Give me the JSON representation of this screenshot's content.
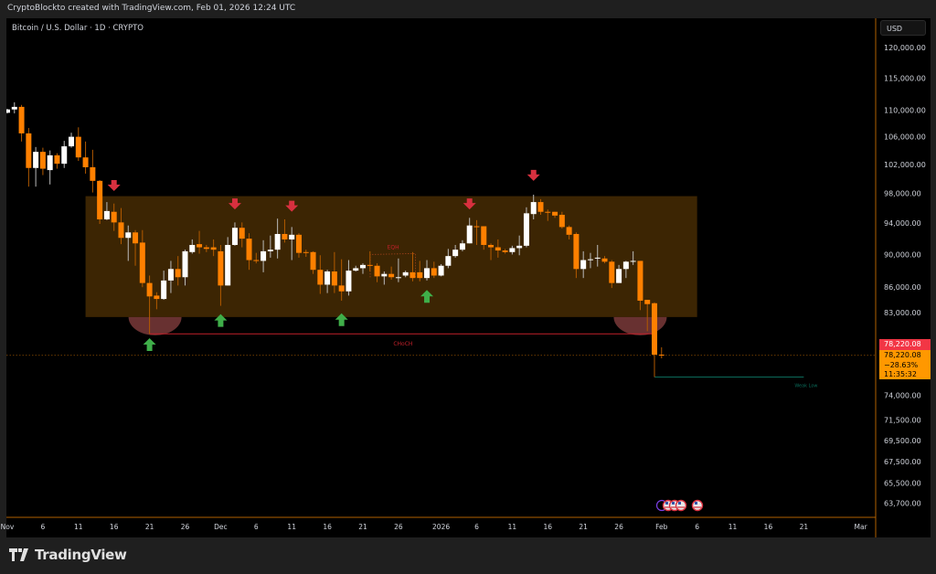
{
  "header": {
    "attribution": "CryptoBlockto created with TradingView.com, Feb 01, 2026 12:24 UTC"
  },
  "symbol": {
    "title": "Bitcoin / U.S. Dollar · 1D · CRYPTO"
  },
  "price_axis": {
    "currency": "USD"
  },
  "last_price": {
    "price_label": "78,220.08",
    "box_price": "78,220.08",
    "change": "−28.63%",
    "countdown": "11:35:32",
    "price_color": "#f23645",
    "box_color": "#ff9800"
  },
  "footer": {
    "brand": "TradingView"
  },
  "colors": {
    "up": "#ffffff",
    "down": "#ff8000",
    "zone": "#3c2503",
    "axis_line": "#b06000",
    "choch": "#c2202a",
    "eqh": "#a0401a",
    "weak_low": "#0b6b5a",
    "bull_arrow": "#3fae49",
    "bear_arrow": "#d8303f",
    "sweep": "#7a3a3a"
  },
  "chart_data": {
    "type": "candlestick",
    "title": "Bitcoin / U.S. Dollar · 1D · CRYPTO",
    "y_scale": "log",
    "ylim": [
      63000,
      123000
    ],
    "xlim": [
      "2025-11-01",
      "2026-03-03"
    ],
    "grid": false,
    "y_ticks": [
      120000,
      115000,
      110000,
      106000,
      102000,
      98000,
      94000,
      90000,
      86000,
      83000,
      74000,
      71500,
      69500,
      67500,
      65500,
      63700
    ],
    "y_tick_labels": [
      "120,000.00",
      "115,000.00",
      "110,000.00",
      "106,000.00",
      "102,000.00",
      "98,000.00",
      "94,000.00",
      "90,000.00",
      "86,000.00",
      "83,000.00",
      "74,000.00",
      "71,500.00",
      "69,500.00",
      "67,500.00",
      "65,500.00",
      "63,700.00"
    ],
    "x_ticks": [
      {
        "label": "Nov",
        "date": "2025-11-01"
      },
      {
        "label": "6",
        "date": "2025-11-06"
      },
      {
        "label": "11",
        "date": "2025-11-11"
      },
      {
        "label": "16",
        "date": "2025-11-16"
      },
      {
        "label": "21",
        "date": "2025-11-21"
      },
      {
        "label": "26",
        "date": "2025-11-26"
      },
      {
        "label": "Dec",
        "date": "2025-12-01"
      },
      {
        "label": "6",
        "date": "2025-12-06"
      },
      {
        "label": "11",
        "date": "2025-12-11"
      },
      {
        "label": "16",
        "date": "2025-12-16"
      },
      {
        "label": "21",
        "date": "2025-12-21"
      },
      {
        "label": "26",
        "date": "2025-12-26"
      },
      {
        "label": "2026",
        "date": "2026-01-01"
      },
      {
        "label": "6",
        "date": "2026-01-06"
      },
      {
        "label": "11",
        "date": "2026-01-11"
      },
      {
        "label": "16",
        "date": "2026-01-16"
      },
      {
        "label": "21",
        "date": "2026-01-21"
      },
      {
        "label": "26",
        "date": "2026-01-26"
      },
      {
        "label": "Feb",
        "date": "2026-02-01"
      },
      {
        "label": "6",
        "date": "2026-02-06"
      },
      {
        "label": "11",
        "date": "2026-02-11"
      },
      {
        "label": "16",
        "date": "2026-02-16"
      },
      {
        "label": "21",
        "date": "2026-02-21"
      },
      {
        "label": "Mar",
        "date": "2026-03-01"
      }
    ],
    "candle_fields": [
      "date",
      "open",
      "high",
      "low",
      "close"
    ],
    "candles": [
      [
        "2025-11-01",
        109600,
        110200,
        109500,
        110100
      ],
      [
        "2025-11-02",
        110100,
        111200,
        109500,
        110500
      ],
      [
        "2025-11-03",
        110500,
        110800,
        105300,
        106500
      ],
      [
        "2025-11-04",
        106500,
        107300,
        98900,
        101500
      ],
      [
        "2025-11-05",
        101500,
        104500,
        98900,
        103800
      ],
      [
        "2025-11-06",
        103800,
        104400,
        100500,
        101400
      ],
      [
        "2025-11-07",
        101200,
        104000,
        99200,
        103300
      ],
      [
        "2025-11-08",
        103300,
        103600,
        101400,
        102100
      ],
      [
        "2025-11-09",
        102100,
        105400,
        101500,
        104600
      ],
      [
        "2025-11-10",
        104600,
        106600,
        104400,
        106000
      ],
      [
        "2025-11-11",
        106000,
        107400,
        102500,
        103000
      ],
      [
        "2025-11-12",
        103000,
        105300,
        100700,
        101600
      ],
      [
        "2025-11-13",
        101600,
        104100,
        98100,
        99700
      ],
      [
        "2025-11-14",
        99700,
        99800,
        93900,
        94500
      ],
      [
        "2025-11-15",
        94500,
        96800,
        94400,
        95600
      ],
      [
        "2025-11-16",
        95500,
        96600,
        93000,
        94100
      ],
      [
        "2025-11-17",
        94100,
        96000,
        91300,
        92100
      ],
      [
        "2025-11-18",
        92100,
        93700,
        89200,
        92800
      ],
      [
        "2025-11-19",
        92800,
        93100,
        88600,
        91400
      ],
      [
        "2025-11-20",
        91500,
        93100,
        86000,
        86500
      ],
      [
        "2025-11-21",
        86500,
        87400,
        80600,
        84900
      ],
      [
        "2025-11-22",
        85000,
        85400,
        83400,
        84600
      ],
      [
        "2025-11-23",
        84600,
        88000,
        84500,
        86800
      ],
      [
        "2025-11-24",
        86800,
        89200,
        85300,
        88200
      ],
      [
        "2025-11-25",
        88200,
        89800,
        86200,
        87200
      ],
      [
        "2025-11-26",
        87200,
        90600,
        86200,
        90400
      ],
      [
        "2025-11-27",
        90300,
        91900,
        90100,
        91200
      ],
      [
        "2025-11-28",
        91300,
        93000,
        90100,
        90900
      ],
      [
        "2025-11-29",
        90900,
        91200,
        90300,
        90700
      ],
      [
        "2025-11-30",
        90900,
        91900,
        89800,
        90600
      ],
      [
        "2025-12-01",
        90400,
        91200,
        83800,
        86200
      ],
      [
        "2025-12-02",
        86200,
        92200,
        86200,
        91200
      ],
      [
        "2025-12-03",
        91200,
        94100,
        91100,
        93400
      ],
      [
        "2025-12-04",
        93400,
        94100,
        90900,
        92000
      ],
      [
        "2025-12-05",
        92000,
        92700,
        88100,
        89300
      ],
      [
        "2025-12-06",
        89300,
        90200,
        88900,
        89200
      ],
      [
        "2025-12-07",
        89200,
        91800,
        87800,
        90400
      ],
      [
        "2025-12-08",
        90400,
        92400,
        89600,
        90600
      ],
      [
        "2025-12-09",
        90600,
        94600,
        89500,
        92600
      ],
      [
        "2025-12-10",
        92600,
        94500,
        91500,
        91900
      ],
      [
        "2025-12-11",
        91900,
        93500,
        89300,
        92500
      ],
      [
        "2025-12-12",
        92500,
        92700,
        89600,
        90200
      ],
      [
        "2025-12-13",
        90300,
        90600,
        89700,
        90200
      ],
      [
        "2025-12-14",
        90300,
        90400,
        87600,
        88100
      ],
      [
        "2025-12-15",
        88100,
        89900,
        85200,
        86300
      ],
      [
        "2025-12-16",
        86300,
        88100,
        85300,
        87900
      ],
      [
        "2025-12-17",
        87900,
        90300,
        85300,
        86200
      ],
      [
        "2025-12-18",
        86200,
        89400,
        84400,
        85500
      ],
      [
        "2025-12-19",
        85500,
        89300,
        85000,
        88000
      ],
      [
        "2025-12-20",
        88000,
        88600,
        87900,
        88300
      ],
      [
        "2025-12-21",
        88300,
        88900,
        87600,
        88700
      ],
      [
        "2025-12-22",
        88700,
        90400,
        87900,
        88600
      ],
      [
        "2025-12-23",
        88600,
        88900,
        86600,
        87300
      ],
      [
        "2025-12-24",
        87300,
        87900,
        86300,
        87600
      ],
      [
        "2025-12-25",
        87600,
        88500,
        86900,
        87200
      ],
      [
        "2025-12-26",
        87100,
        89500,
        86600,
        87200
      ],
      [
        "2025-12-27",
        87400,
        88000,
        87200,
        87800
      ],
      [
        "2025-12-28",
        87800,
        90300,
        86700,
        87100
      ],
      [
        "2025-12-29",
        87800,
        89200,
        86700,
        87100
      ],
      [
        "2025-12-30",
        87100,
        89300,
        86800,
        88300
      ],
      [
        "2025-12-31",
        88300,
        89100,
        87100,
        87400
      ],
      [
        "2026-01-01",
        87400,
        88800,
        87300,
        88600
      ],
      [
        "2026-01-02",
        88600,
        90700,
        88300,
        89800
      ],
      [
        "2026-01-03",
        89800,
        91200,
        89600,
        90600
      ],
      [
        "2026-01-04",
        90600,
        91800,
        90400,
        91400
      ],
      [
        "2026-01-05",
        91400,
        94700,
        91400,
        93700
      ],
      [
        "2026-01-06",
        93600,
        94400,
        91200,
        93500
      ],
      [
        "2026-01-07",
        93600,
        93600,
        90600,
        91200
      ],
      [
        "2026-01-08",
        91200,
        91400,
        89300,
        90900
      ],
      [
        "2026-01-09",
        90900,
        91900,
        89600,
        90500
      ],
      [
        "2026-01-10",
        90500,
        90700,
        90100,
        90300
      ],
      [
        "2026-01-11",
        90300,
        91100,
        90000,
        90800
      ],
      [
        "2026-01-12",
        90800,
        92400,
        89900,
        91100
      ],
      [
        "2026-01-13",
        91100,
        96100,
        90900,
        95300
      ],
      [
        "2026-01-14",
        95200,
        97800,
        94500,
        96800
      ],
      [
        "2026-01-15",
        96800,
        97200,
        95100,
        95500
      ],
      [
        "2026-01-16",
        95500,
        95800,
        94300,
        95400
      ],
      [
        "2026-01-17",
        95500,
        95500,
        94700,
        95000
      ],
      [
        "2026-01-18",
        95100,
        95500,
        93300,
        93500
      ],
      [
        "2026-01-19",
        93500,
        93700,
        91900,
        92500
      ],
      [
        "2026-01-20",
        92600,
        92800,
        87100,
        88200
      ],
      [
        "2026-01-21",
        88200,
        90400,
        87100,
        89300
      ],
      [
        "2026-01-22",
        89300,
        90200,
        88300,
        89400
      ],
      [
        "2026-01-23",
        89500,
        91200,
        88500,
        89600
      ],
      [
        "2026-01-24",
        89500,
        89800,
        88900,
        89100
      ],
      [
        "2026-01-25",
        89100,
        89300,
        85900,
        86500
      ],
      [
        "2026-01-26",
        86500,
        88700,
        86500,
        88200
      ],
      [
        "2026-01-27",
        88200,
        89200,
        87100,
        89100
      ],
      [
        "2026-01-28",
        89100,
        90400,
        88700,
        89200
      ],
      [
        "2026-01-29",
        89200,
        89200,
        83300,
        84400
      ],
      [
        "2026-01-30",
        84500,
        84500,
        80900,
        84000
      ],
      [
        "2026-01-31",
        84100,
        84200,
        75900,
        78300
      ],
      [
        "2026-02-01",
        78300,
        79100,
        77900,
        78220.08
      ]
    ],
    "annotations": {
      "range_zone": {
        "from": "2025-11-12",
        "to": "2026-02-06",
        "top": 97600,
        "bottom": 82500
      },
      "bear_arrows": [
        {
          "date": "2025-11-16",
          "price": 98800
        },
        {
          "date": "2025-12-03",
          "price": 96300
        },
        {
          "date": "2025-12-11",
          "price": 96000
        },
        {
          "date": "2026-01-05",
          "price": 96300
        },
        {
          "date": "2026-01-14",
          "price": 100200
        }
      ],
      "bull_arrows": [
        {
          "date": "2025-11-21",
          "price": 79300
        },
        {
          "date": "2025-12-01",
          "price": 82000
        },
        {
          "date": "2025-12-18",
          "price": 82100
        },
        {
          "date": "2025-12-30",
          "price": 84800
        }
      ],
      "sweeps": [
        {
          "date": "2025-11-21",
          "price": 82500
        },
        {
          "date": "2026-01-29",
          "price": 82500
        }
      ],
      "choch": {
        "label": "CHoCH",
        "price": 80600,
        "from": "2025-11-21",
        "to": "2026-01-31",
        "label_date": "2025-12-26"
      },
      "eqh": {
        "label": "EQH",
        "price": 90000,
        "from": "2025-12-21",
        "to": "2025-12-28",
        "label_date": "2025-12-25"
      },
      "weak_low": {
        "label": "Weak Low",
        "price": 75900,
        "from": "2026-01-31",
        "to": "2026-02-21"
      },
      "last_price_line": 78220.08
    }
  }
}
